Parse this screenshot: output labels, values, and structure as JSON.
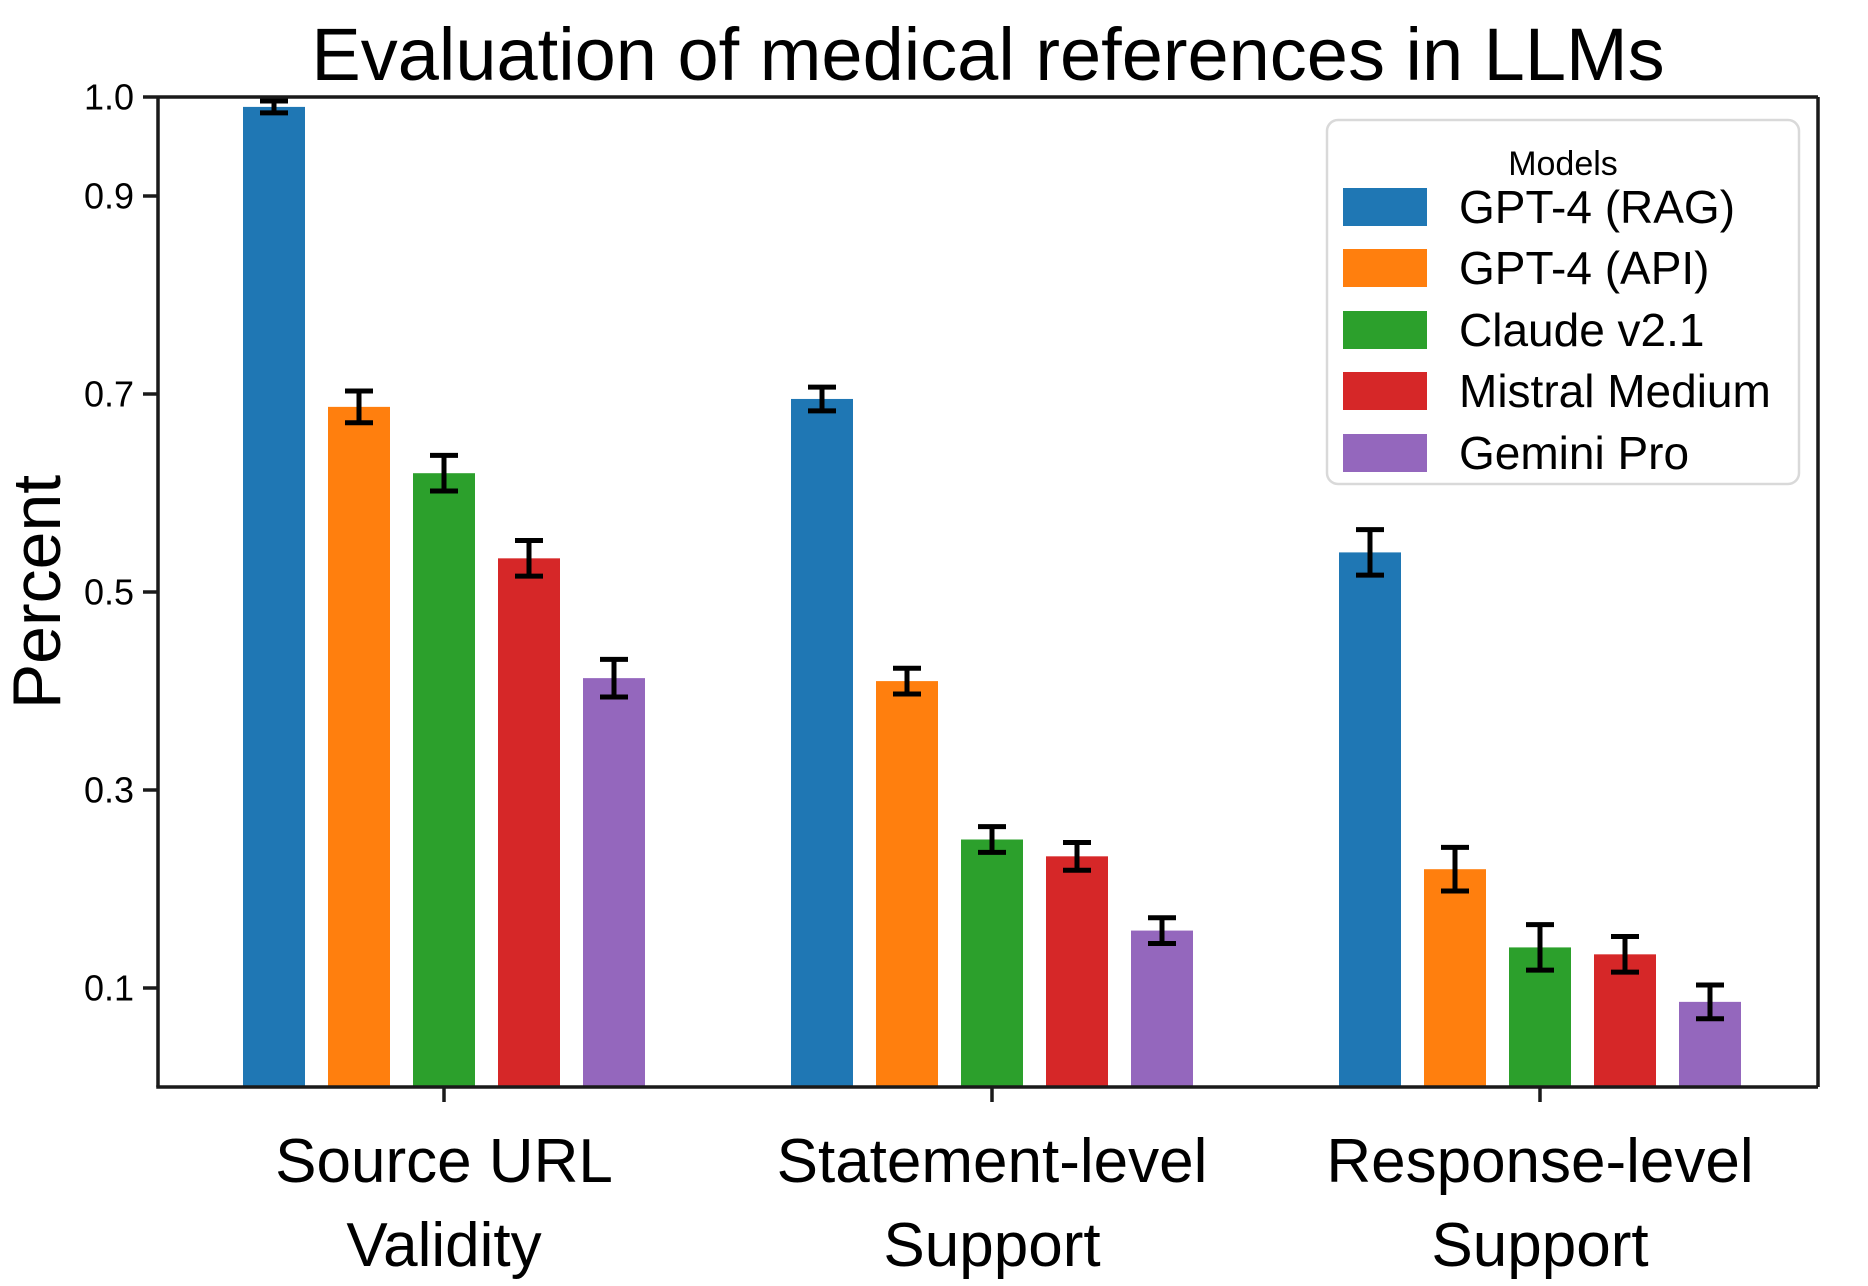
{
  "chart_data": {
    "type": "bar",
    "title": "Evaluation of medical references in LLMs",
    "xlabel": "",
    "ylabel": "Percent",
    "categories": [
      [
        "Source URL",
        "Validity"
      ],
      [
        "Statement-level",
        "Support"
      ],
      [
        "Response-level",
        "Support"
      ]
    ],
    "yticks": [
      "1.0",
      "0.9",
      "0.7",
      "0.5",
      "0.3",
      "0.1"
    ],
    "ytick_values": [
      1.0,
      0.9,
      0.7,
      0.5,
      0.3,
      0.1
    ],
    "ylim": [
      0,
      1.0
    ],
    "grid": false,
    "legend": {
      "title": "Models",
      "position": "upper right"
    },
    "series": [
      {
        "name": "GPT-4 (RAG)",
        "color": "#1f77b4",
        "values": [
          0.99,
          0.695,
          0.54
        ],
        "errors": [
          0.006,
          0.012,
          0.023
        ]
      },
      {
        "name": "GPT-4 (API)",
        "color": "#ff7f0e",
        "values": [
          0.687,
          0.41,
          0.22
        ],
        "errors": [
          0.016,
          0.013,
          0.022
        ]
      },
      {
        "name": "Claude v2.1",
        "color": "#2ca02c",
        "values": [
          0.62,
          0.25,
          0.141
        ],
        "errors": [
          0.018,
          0.013,
          0.023
        ]
      },
      {
        "name": "Mistral Medium",
        "color": "#d62728",
        "values": [
          0.534,
          0.233,
          0.134
        ],
        "errors": [
          0.018,
          0.014,
          0.018
        ]
      },
      {
        "name": "Gemini Pro",
        "color": "#9467bd",
        "values": [
          0.413,
          0.158,
          0.086
        ],
        "errors": [
          0.019,
          0.013,
          0.017
        ]
      }
    ],
    "error_bar_color": "#000000",
    "axis_color": "#1a1a1a"
  }
}
